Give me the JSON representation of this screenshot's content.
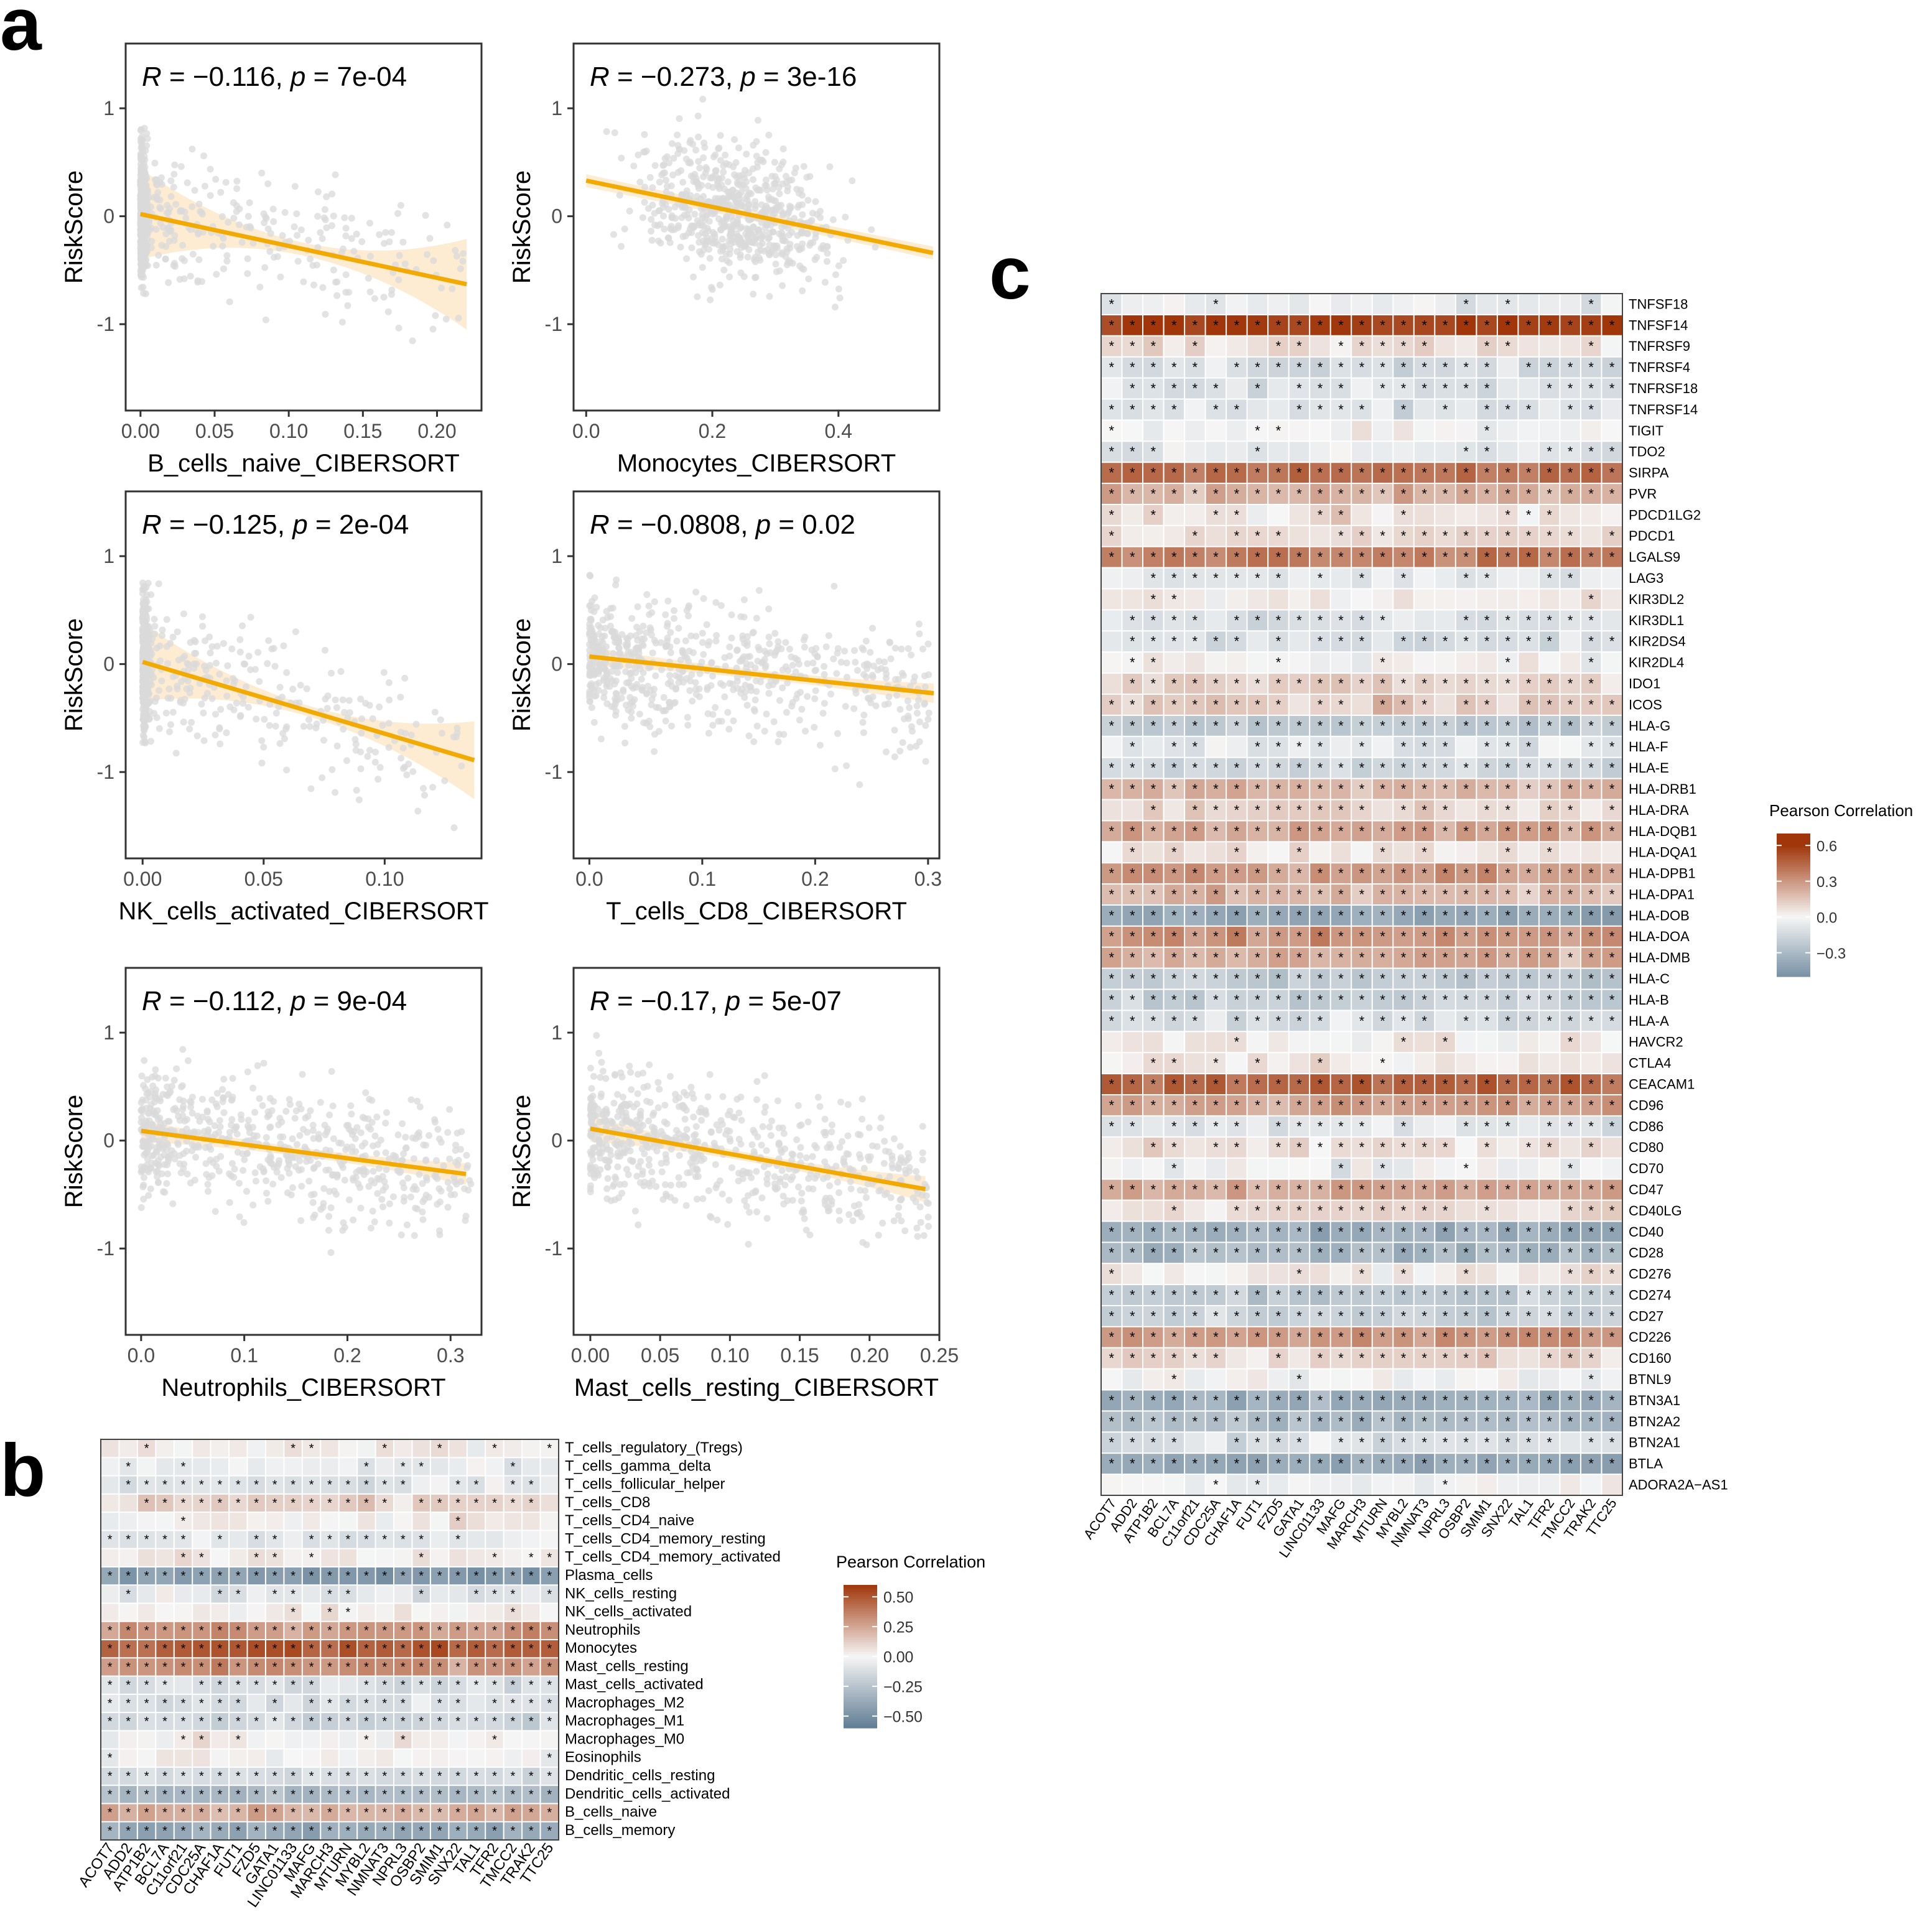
{
  "panel_letters": [
    "a",
    "b",
    "c"
  ],
  "chart_data": [
    {
      "type": "scatter",
      "panel": "a",
      "stat_r": "−0.116",
      "stat_p": "7e-04",
      "xlabel": "B_cells_naive_CIBERSORT",
      "ylabel": "RiskScore",
      "xlim": [
        -0.01,
        0.23
      ],
      "ylim": [
        -1.8,
        1.6
      ],
      "xticks": [
        0,
        0.05,
        0.1,
        0.15,
        0.2
      ],
      "xtick_labels": [
        "0.00",
        "0.05",
        "0.10",
        "0.15",
        "0.20"
      ],
      "yticks": [
        1,
        0,
        -1
      ],
      "ytick_labels": [
        "1",
        "0",
        "-1"
      ],
      "fit": {
        "x": [
          0,
          0.22
        ],
        "y": [
          0.02,
          -0.63
        ]
      },
      "band": [
        0.06,
        0.42
      ],
      "clump": "zero",
      "points_color": "#d9d9d9",
      "line_color": "#f2a900",
      "band_color": "#fde9c9"
    },
    {
      "type": "scatter",
      "panel": "a",
      "stat_r": "−0.273",
      "stat_p": "3e-16",
      "xlabel": "Monocytes_CIBERSORT",
      "ylabel": "RiskScore",
      "xlim": [
        -0.02,
        0.56
      ],
      "ylim": [
        -1.8,
        1.6
      ],
      "xticks": [
        0,
        0.2,
        0.4
      ],
      "xtick_labels": [
        "0.0",
        "0.2",
        "0.4"
      ],
      "yticks": [
        1,
        0,
        -1
      ],
      "ytick_labels": [
        "1",
        "0",
        "-1"
      ],
      "fit": {
        "x": [
          0,
          0.55
        ],
        "y": [
          0.33,
          -0.34
        ]
      },
      "band": [
        0.05,
        0.06
      ],
      "clump": "spread",
      "points_color": "#d9d9d9",
      "line_color": "#f2a900",
      "band_color": "#fde9c9"
    },
    {
      "type": "scatter",
      "panel": "a",
      "stat_r": "−0.125",
      "stat_p": "2e-04",
      "xlabel": "NK_cells_activated_CIBERSORT",
      "ylabel": "RiskScore",
      "xlim": [
        -0.007,
        0.14
      ],
      "ylim": [
        -1.8,
        1.6
      ],
      "xticks": [
        0,
        0.05,
        0.1
      ],
      "xtick_labels": [
        "0.00",
        "0.05",
        "0.10"
      ],
      "yticks": [
        1,
        0,
        -1
      ],
      "ytick_labels": [
        "1",
        "0",
        "-1"
      ],
      "fit": {
        "x": [
          0,
          0.137
        ],
        "y": [
          0.02,
          -0.89
        ]
      },
      "band": [
        0.05,
        0.36
      ],
      "clump": "zero",
      "points_color": "#d9d9d9",
      "line_color": "#f2a900",
      "band_color": "#fde9c9"
    },
    {
      "type": "scatter",
      "panel": "a",
      "stat_r": "−0.0808",
      "stat_p": "0.02",
      "xlabel": "T_cells_CD8_CIBERSORT",
      "ylabel": "RiskScore",
      "xlim": [
        -0.014,
        0.31
      ],
      "ylim": [
        -1.8,
        1.6
      ],
      "xticks": [
        0,
        0.1,
        0.2,
        0.3
      ],
      "xtick_labels": [
        "0.0",
        "0.1",
        "0.2",
        "0.3"
      ],
      "yticks": [
        1,
        0,
        -1
      ],
      "ytick_labels": [
        "1",
        "0",
        "-1"
      ],
      "fit": {
        "x": [
          0,
          0.305
        ],
        "y": [
          0.07,
          -0.27
        ]
      },
      "band": [
        0.04,
        0.09
      ],
      "clump": "left",
      "points_color": "#d9d9d9",
      "line_color": "#f2a900",
      "band_color": "#fde9c9"
    },
    {
      "type": "scatter",
      "panel": "a",
      "stat_r": "−0.112",
      "stat_p": "9e-04",
      "xlabel": "Neutrophils_CIBERSORT",
      "ylabel": "RiskScore",
      "xlim": [
        -0.015,
        0.33
      ],
      "ylim": [
        -1.8,
        1.6
      ],
      "xticks": [
        0,
        0.1,
        0.2,
        0.3
      ],
      "xtick_labels": [
        "0.0",
        "0.1",
        "0.2",
        "0.3"
      ],
      "yticks": [
        1,
        0,
        -1
      ],
      "ytick_labels": [
        "1",
        "0",
        "-1"
      ],
      "fit": {
        "x": [
          0,
          0.315
        ],
        "y": [
          0.09,
          -0.31
        ]
      },
      "band": [
        0.04,
        0.1
      ],
      "clump": "left",
      "points_color": "#d9d9d9",
      "line_color": "#f2a900",
      "band_color": "#fde9c9"
    },
    {
      "type": "scatter",
      "panel": "a",
      "stat_r": "−0.17",
      "stat_p": "5e-07",
      "xlabel": "Mast_cells_resting_CIBERSORT",
      "ylabel": "RiskScore",
      "xlim": [
        -0.012,
        0.25
      ],
      "ylim": [
        -1.8,
        1.6
      ],
      "xticks": [
        0,
        0.05,
        0.1,
        0.15,
        0.2,
        0.25
      ],
      "xtick_labels": [
        "0.00",
        "0.05",
        "0.10",
        "0.15",
        "0.20",
        "0.25"
      ],
      "yticks": [
        1,
        0,
        -1
      ],
      "ytick_labels": [
        "1",
        "0",
        "-1"
      ],
      "fit": {
        "x": [
          0,
          0.24
        ],
        "y": [
          0.11,
          -0.45
        ]
      },
      "band": [
        0.04,
        0.12
      ],
      "clump": "left",
      "points_color": "#d9d9d9",
      "line_color": "#f2a900",
      "band_color": "#fde9c9"
    },
    {
      "type": "heatmap",
      "panel": "b",
      "columns": [
        "ACOT7",
        "ADD2",
        "ATP1B2",
        "BCL7A",
        "C11orf21",
        "CDC25A",
        "CHAF1A",
        "FUT1",
        "FZD5",
        "GATA1",
        "LINC01133",
        "MAFG",
        "MARCH3",
        "MTURN",
        "MYBL2",
        "NMNAT3",
        "NPRL3",
        "OSBP2",
        "SMIM1",
        "SNX22",
        "TAL1",
        "TFR2",
        "TMCC2",
        "TRAK2",
        "TTC25"
      ],
      "rows": [
        "T_cells_regulatory_(Tregs)",
        "T_cells_gamma_delta",
        "T_cells_follicular_helper",
        "T_cells_CD8",
        "T_cells_CD4_naive",
        "T_cells_CD4_memory_resting",
        "T_cells_CD4_memory_activated",
        "Plasma_cells",
        "NK_cells_resting",
        "NK_cells_activated",
        "Neutrophils",
        "Monocytes",
        "Mast_cells_resting",
        "Mast_cells_activated",
        "Macrophages_M2",
        "Macrophages_M1",
        "Macrophages_M0",
        "Eosinophils",
        "Dendritic_cells_resting",
        "Dendritic_cells_activated",
        "B_cells_naive",
        "B_cells_memory"
      ],
      "row_mean": [
        0.03,
        -0.06,
        -0.09,
        0.12,
        0.02,
        -0.07,
        0.05,
        -0.45,
        -0.08,
        0.03,
        0.3,
        0.48,
        0.32,
        -0.12,
        -0.1,
        -0.16,
        0.02,
        0.01,
        -0.15,
        -0.3,
        0.22,
        -0.38
      ],
      "legend_title": "Pearson Correlation",
      "legend_ticks": [
        0.5,
        0.25,
        0,
        -0.25,
        -0.5
      ],
      "legend_labels": [
        "0.50",
        "0.25",
        "0.00",
        "−0.25",
        "−0.50"
      ],
      "scale_min": -0.6,
      "scale_max": 0.6,
      "seed": 7
    },
    {
      "type": "heatmap",
      "panel": "c",
      "columns": [
        "ACOT7",
        "ADD2",
        "ATP1B2",
        "BCL7A",
        "C11orf21",
        "CDC25A",
        "CHAF1A",
        "FUT1",
        "FZD5",
        "GATA1",
        "LINC01133",
        "MAFG",
        "MARCH3",
        "MTURN",
        "MYBL2",
        "NMNAT3",
        "NPRL3",
        "OSBP2",
        "SMIM1",
        "SNX22",
        "TAL1",
        "TFR2",
        "TMCC2",
        "TRAK2",
        "TTC25"
      ],
      "rows": [
        "TNFSF18",
        "TNFSF14",
        "TNFRSF9",
        "TNFRSF4",
        "TNFRSF18",
        "TNFRSF14",
        "TIGIT",
        "TDO2",
        "SIRPA",
        "PVR",
        "PDCD1LG2",
        "PDCD1",
        "LGALS9",
        "LAG3",
        "KIR3DL2",
        "KIR3DL1",
        "KIR2DS4",
        "KIR2DL4",
        "IDO1",
        "ICOS",
        "HLA-G",
        "HLA-F",
        "HLA-E",
        "HLA-DRB1",
        "HLA-DRA",
        "HLA-DQB1",
        "HLA-DQA1",
        "HLA-DPB1",
        "HLA-DPA1",
        "HLA-DOB",
        "HLA-DOA",
        "HLA-DMB",
        "HLA-C",
        "HLA-B",
        "HLA-A",
        "HAVCR2",
        "CTLA4",
        "CEACAM1",
        "CD96",
        "CD86",
        "CD80",
        "CD70",
        "CD47",
        "CD40LG",
        "CD40",
        "CD28",
        "CD276",
        "CD274",
        "CD27",
        "CD226",
        "CD160",
        "BTNL9",
        "BTN3A1",
        "BTN2A2",
        "BTN2A1",
        "BTLA",
        "ADORA2A−AS1"
      ],
      "row_mean": [
        -0.05,
        0.58,
        0.07,
        -0.12,
        -0.1,
        -0.1,
        0.01,
        -0.08,
        0.42,
        0.22,
        0.06,
        0.08,
        0.38,
        -0.07,
        0.03,
        -0.1,
        -0.12,
        0.01,
        0.11,
        0.13,
        -0.22,
        -0.08,
        -0.15,
        0.2,
        0.1,
        0.25,
        0.05,
        0.28,
        0.2,
        -0.38,
        0.3,
        0.24,
        -0.22,
        -0.2,
        -0.12,
        0.03,
        0.05,
        0.45,
        0.27,
        -0.08,
        0.09,
        -0.03,
        0.25,
        0.1,
        -0.35,
        -0.32,
        0.04,
        -0.22,
        -0.18,
        0.3,
        0.1,
        -0.02,
        -0.35,
        -0.3,
        -0.12,
        -0.38,
        -0.02
      ],
      "legend_title": "Pearson Correlation",
      "legend_ticks": [
        0.6,
        0.3,
        0,
        -0.3
      ],
      "legend_labels": [
        "0.6",
        "0.3",
        "0.0",
        "−0.3"
      ],
      "scale_min": -0.5,
      "scale_max": 0.7,
      "seed": 31
    }
  ]
}
